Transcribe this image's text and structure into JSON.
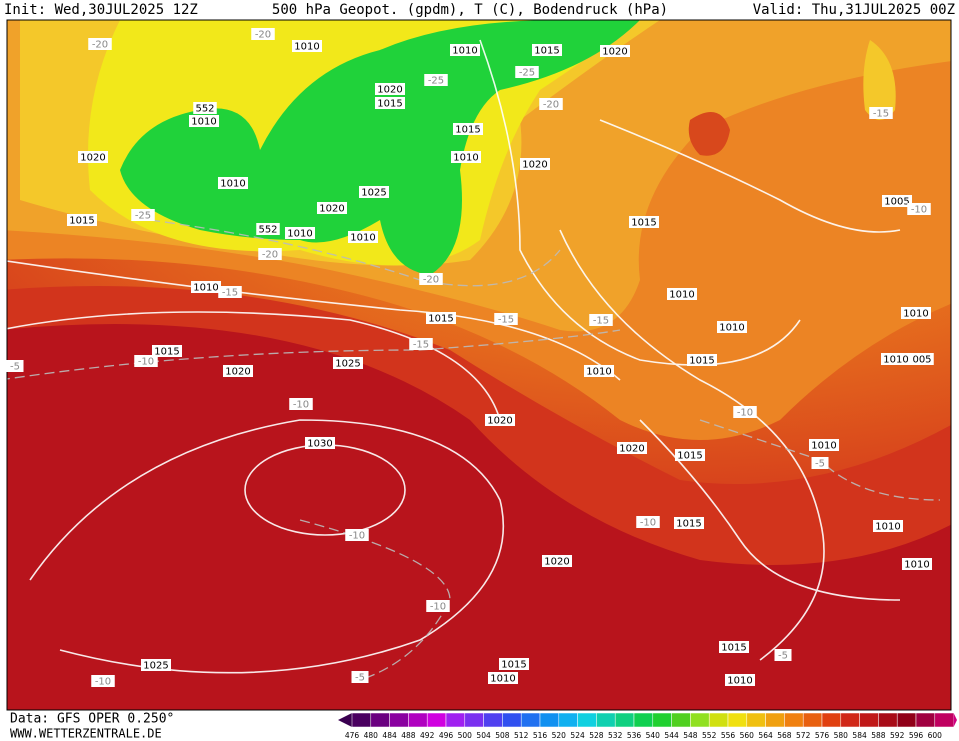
{
  "header": {
    "init": "Init: Wed,30JUL2025 12Z",
    "title": "500 hPa Geopot. (gpdm), T (C), Bodendruck (hPa)",
    "valid": "Valid: Thu,31JUL2025 00Z"
  },
  "footer": {
    "data": "Data: GFS OPER 0.250°",
    "site": "WWW.WETTERZENTRALE.DE"
  },
  "colorbar": {
    "labels": [
      476,
      480,
      484,
      488,
      492,
      496,
      500,
      504,
      508,
      512,
      516,
      520,
      524,
      528,
      532,
      536,
      540,
      544,
      548,
      552,
      556,
      560,
      564,
      568,
      572,
      576,
      580,
      584,
      588,
      592,
      596,
      600
    ]
  },
  "map": {
    "labels": [
      "-20",
      "-20",
      "1010",
      "1010",
      "1015",
      "1020",
      "-25",
      "-25",
      "1020",
      "1015",
      "552",
      "1010",
      "-20",
      "1020",
      "1015",
      "1010",
      "1020",
      "1010",
      "1025",
      "1020",
      "-25",
      "1015",
      "552",
      "1010",
      "1010",
      "1005",
      "-10",
      "-15",
      "-20",
      "-20",
      "1015",
      "1010",
      "-15",
      "1010",
      "1015",
      "-15",
      "-15",
      "1010",
      "1010",
      "-5",
      "-10",
      "1015",
      "1020",
      "1025",
      "-15",
      "1015",
      "1010",
      "1010",
      "005",
      "-10",
      "1020",
      "-10",
      "1030",
      "1020",
      "1015",
      "1010",
      "-5",
      "-10",
      "-10",
      "1015",
      "1010",
      "1020",
      "1010",
      "-10",
      "1015",
      "-5",
      "1025",
      "1015",
      "1010",
      "-5",
      "1010",
      "-10"
    ]
  }
}
